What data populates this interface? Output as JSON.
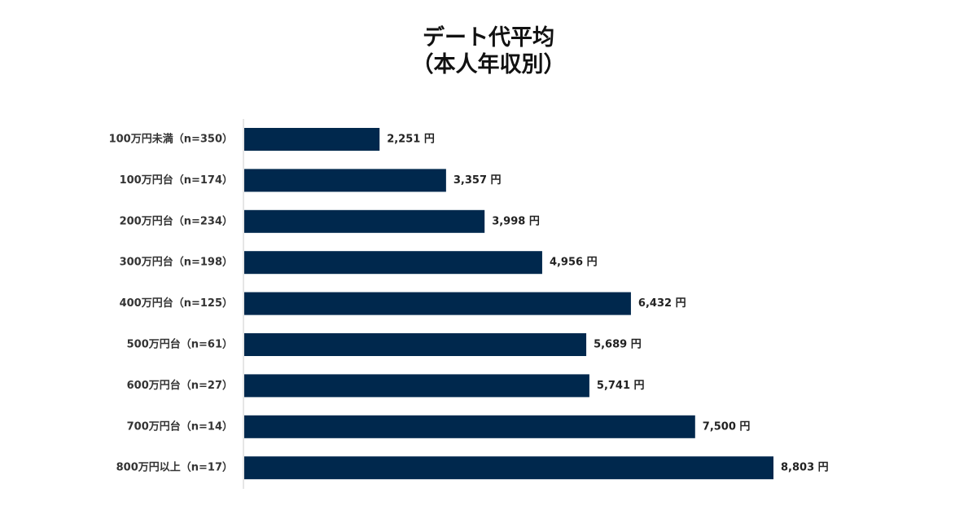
{
  "chart_data": {
    "type": "bar",
    "orientation": "horizontal",
    "title_lines": [
      "デート代平均",
      "（本人年収別）"
    ],
    "categories": [
      "100万円未満（n=350）",
      "100万円台（n=174）",
      "200万円台（n=234）",
      "300万円台（n=198）",
      "400万円台（n=125）",
      "500万円台（n=61）",
      "600万円台（n=27）",
      "700万円台（n=14）",
      "800万円以上（n=17）"
    ],
    "values": [
      2251,
      3357,
      3998,
      4956,
      6432,
      5689,
      5741,
      7500,
      8803
    ],
    "value_labels": [
      "2,251 円",
      "3,357 円",
      "3,998 円",
      "4,956 円",
      "6,432 円",
      "5,689 円",
      "5,741 円",
      "7,500 円",
      "8,803 円"
    ],
    "xlim": [
      0,
      9000
    ],
    "grid": false,
    "legend": "none",
    "bar_color": "#00284d",
    "axis_color": "#cccccc"
  }
}
